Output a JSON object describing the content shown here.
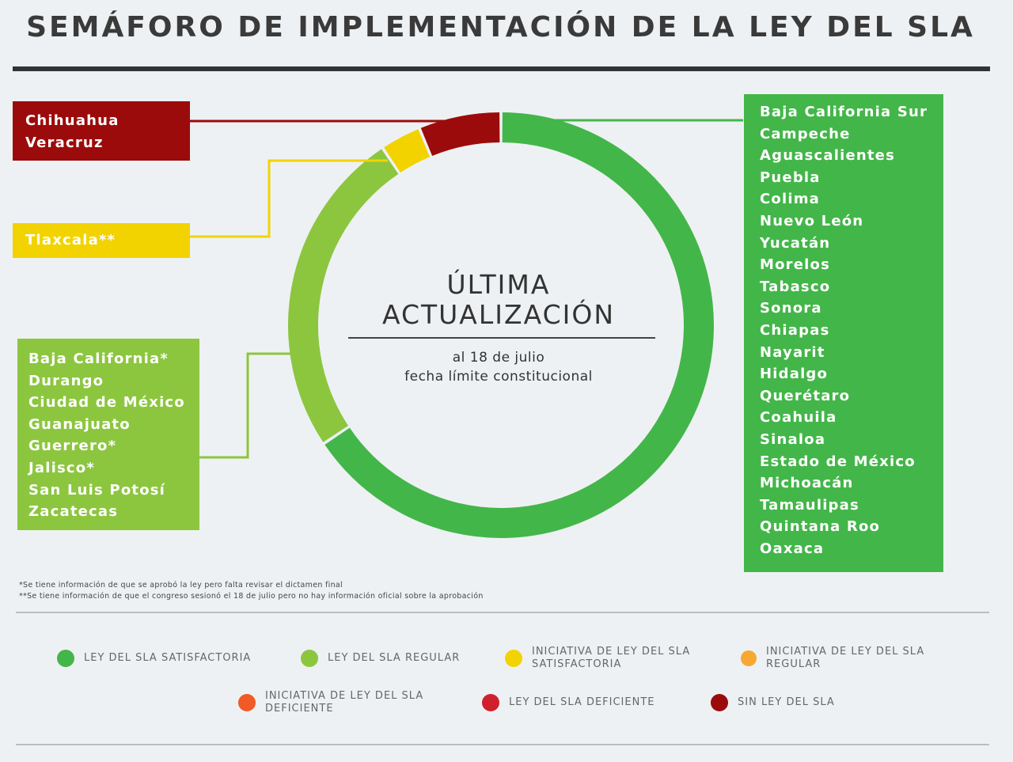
{
  "title": "SEMÁFORO DE IMPLEMENTACIÓN DE LA LEY DEL SLA",
  "center": {
    "line1": "ÚLTIMA",
    "line2": "ACTUALIZACIÓN",
    "sub1": "al 18 de julio",
    "sub2": "fecha límite constitucional"
  },
  "footnotes": [
    "*Se tiene información de que se aprobó la ley pero falta revisar el dictamen final",
    "**Se tiene información de que el congreso sesionó el 18 de julio pero no hay información oficial sobre la aprobación"
  ],
  "legend": [
    {
      "label": "LEY DEL SLA SATISFACTORIA",
      "color": "#43b649"
    },
    {
      "label": "LEY DEL SLA REGULAR",
      "color": "#8cc63f"
    },
    {
      "label": "INICIATIVA DE LEY DEL SLA SATISFACTORIA",
      "color": "#f2d300"
    },
    {
      "label": "INICIATIVA DE LEY DEL SLA REGULAR",
      "color": "#f7a833"
    },
    {
      "label": "INICIATIVA DE LEY DEL SLA DEFICIENTE",
      "color": "#f15a24"
    },
    {
      "label": "LEY DEL SLA DEFICIENTE",
      "color": "#d0202e"
    },
    {
      "label": "SIN LEY DEL SLA",
      "color": "#9c0b0b"
    }
  ],
  "chart_data": {
    "type": "pie",
    "variant": "donut",
    "title": "SEMÁFORO DE IMPLEMENTACIÓN DE LA LEY DEL SLA",
    "categories": [
      "LEY DEL SLA SATISFACTORIA",
      "LEY DEL SLA REGULAR",
      "INICIATIVA DE LEY DEL SLA SATISFACTORIA",
      "SIN LEY DEL SLA"
    ],
    "values": [
      21,
      8,
      1,
      2
    ],
    "colors": [
      "#43b649",
      "#8cc63f",
      "#f2d300",
      "#9c0b0b"
    ],
    "groups": [
      {
        "category": "LEY DEL SLA SATISFACTORIA",
        "color": "#43b649",
        "states": [
          "Baja California Sur",
          "Campeche",
          "Aguascalientes",
          "Puebla",
          "Colima",
          "Nuevo León",
          "Yucatán",
          "Morelos",
          "Tabasco",
          "Sonora",
          "Chiapas",
          "Nayarit",
          "Hidalgo",
          "Querétaro",
          "Coahuila",
          "Sinaloa",
          "Estado de México",
          "Michoacán",
          "Tamaulipas",
          "Quintana Roo",
          "Oaxaca"
        ]
      },
      {
        "category": "LEY DEL SLA REGULAR",
        "color": "#8cc63f",
        "states": [
          "Baja California*",
          "Durango",
          "Ciudad de México",
          "Guanajuato",
          "Guerrero*",
          "Jalisco*",
          "San Luis Potosí",
          "Zacatecas"
        ]
      },
      {
        "category": "INICIATIVA DE LEY DEL SLA SATISFACTORIA",
        "color": "#f2d300",
        "states": [
          "Tlaxcala**"
        ]
      },
      {
        "category": "SIN LEY DEL SLA",
        "color": "#9c0b0b",
        "states": [
          "Chihuahua",
          "Veracruz"
        ]
      }
    ],
    "legend_position": "bottom"
  }
}
